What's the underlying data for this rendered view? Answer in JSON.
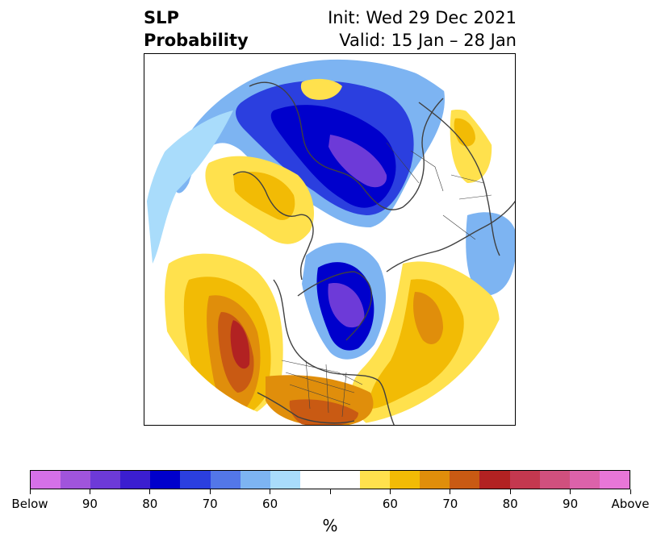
{
  "title": {
    "left_line1": "SLP",
    "left_line2": "Probability",
    "right_line1": "Init: Wed 29 Dec 2021",
    "right_line2": "Valid: 15 Jan – 28 Jan"
  },
  "map": {
    "description_colors": {
      "below_strong": "#6a2fd6",
      "below_mid": "#0000cc",
      "below_light": "#a9dcfb",
      "above_light": "#ffe14d",
      "above_mid": "#e08e0b",
      "above_strong": "#b22222"
    }
  },
  "colorbar": {
    "colors": [
      "#d570e8",
      "#a054dc",
      "#6d3ad8",
      "#3b1ed0",
      "#0000cc",
      "#2b3fdf",
      "#5377e8",
      "#7db4f2",
      "#a9dcfb",
      "#ffffff",
      "#ffffff",
      "#ffe14d",
      "#f2bb05",
      "#e08e0b",
      "#c95a13",
      "#b22222",
      "#c4384f",
      "#d0507e",
      "#dc62aa",
      "#e876d8"
    ],
    "tick_labels": [
      "Below",
      "90",
      "80",
      "70",
      "60",
      "",
      "60",
      "70",
      "80",
      "90",
      "Above"
    ],
    "unit": "%"
  }
}
